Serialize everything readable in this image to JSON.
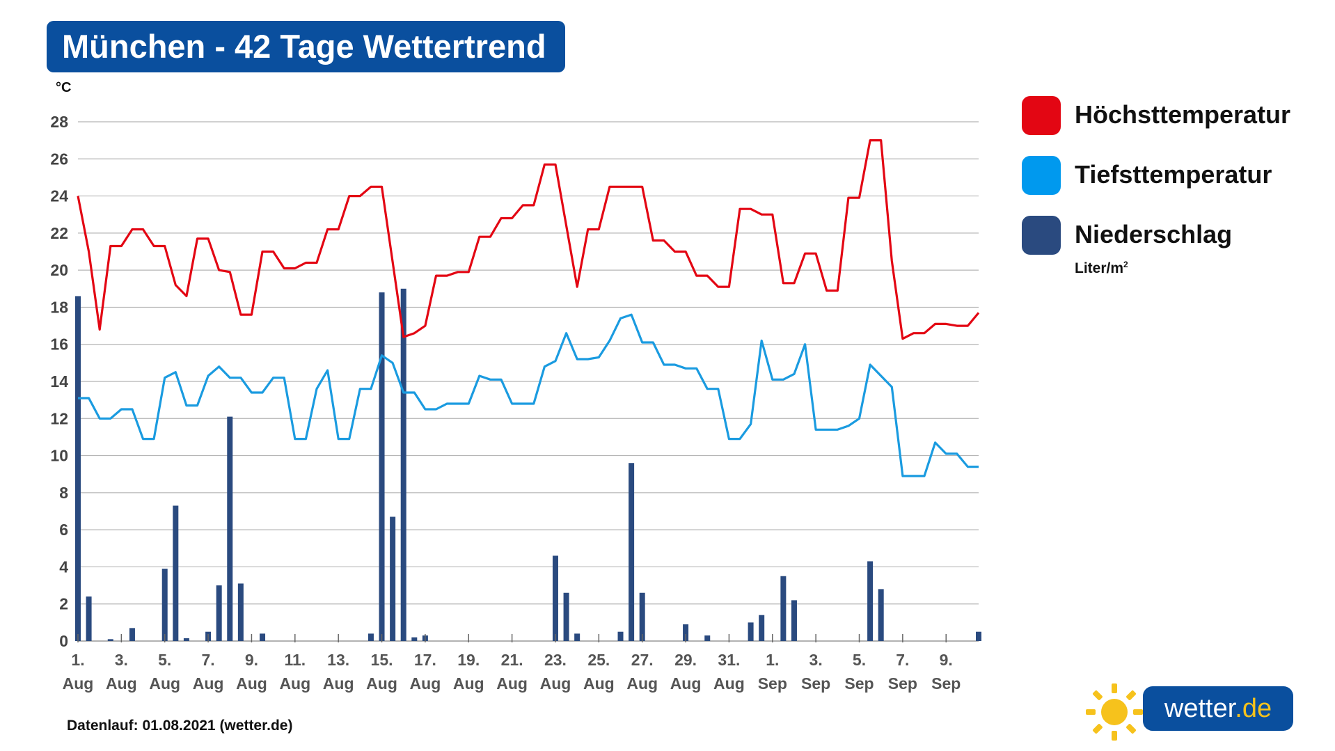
{
  "title": "München - 42 Tage Wettertrend",
  "y_unit": "°C",
  "footer": "Datenlauf: 01.08.2021 (wetter.de)",
  "logo": {
    "name": "wetter",
    "tld": ".de"
  },
  "legend": [
    {
      "label": "Höchsttemperatur",
      "color": "#e30613"
    },
    {
      "label": "Tiefsttemperatur",
      "color": "#0099ee"
    },
    {
      "label": "Niederschlag",
      "color": "#2a4a7f"
    }
  ],
  "legend_unit": {
    "text": "Liter/m",
    "sup": "2"
  },
  "chart_data": {
    "type": "line",
    "title": "München - 42 Tage Wettertrend",
    "ylabel": "°C",
    "ylim": [
      0,
      28
    ],
    "yticks": [
      0,
      2,
      4,
      6,
      8,
      10,
      12,
      14,
      16,
      18,
      20,
      22,
      24,
      26,
      28
    ],
    "grid": true,
    "legend_position": "right",
    "x_ticks": [
      {
        "day": "1.",
        "month": "Aug"
      },
      {
        "day": "3.",
        "month": "Aug"
      },
      {
        "day": "5.",
        "month": "Aug"
      },
      {
        "day": "7.",
        "month": "Aug"
      },
      {
        "day": "9.",
        "month": "Aug"
      },
      {
        "day": "11.",
        "month": "Aug"
      },
      {
        "day": "13.",
        "month": "Aug"
      },
      {
        "day": "15.",
        "month": "Aug"
      },
      {
        "day": "17.",
        "month": "Aug"
      },
      {
        "day": "19.",
        "month": "Aug"
      },
      {
        "day": "21.",
        "month": "Aug"
      },
      {
        "day": "23.",
        "month": "Aug"
      },
      {
        "day": "25.",
        "month": "Aug"
      },
      {
        "day": "27.",
        "month": "Aug"
      },
      {
        "day": "29.",
        "month": "Aug"
      },
      {
        "day": "31.",
        "month": "Aug"
      },
      {
        "day": "1.",
        "month": "Sep"
      },
      {
        "day": "3.",
        "month": "Sep"
      },
      {
        "day": "5.",
        "month": "Sep"
      },
      {
        "day": "7.",
        "month": "Sep"
      },
      {
        "day": "9.",
        "month": "Sep"
      }
    ],
    "series": [
      {
        "name": "Höchsttemperatur",
        "color": "#e30613",
        "kind": "line",
        "points": [
          [
            0,
            24.0
          ],
          [
            0.5,
            21.0
          ],
          [
            1.0,
            16.8
          ],
          [
            1.5,
            21.3
          ],
          [
            2.0,
            21.3
          ],
          [
            2.5,
            22.2
          ],
          [
            3.0,
            22.2
          ],
          [
            3.5,
            21.3
          ],
          [
            4.0,
            21.3
          ],
          [
            4.5,
            19.2
          ],
          [
            5.0,
            18.6
          ],
          [
            5.5,
            21.7
          ],
          [
            6.0,
            21.7
          ],
          [
            6.5,
            20.0
          ],
          [
            7.0,
            19.9
          ],
          [
            7.5,
            17.6
          ],
          [
            8.0,
            17.6
          ],
          [
            8.5,
            21.0
          ],
          [
            9.0,
            21.0
          ],
          [
            9.5,
            20.1
          ],
          [
            10.0,
            20.1
          ],
          [
            10.5,
            20.4
          ],
          [
            11.0,
            20.4
          ],
          [
            11.5,
            22.2
          ],
          [
            12.0,
            22.2
          ],
          [
            12.5,
            24.0
          ],
          [
            13.0,
            24.0
          ],
          [
            13.5,
            24.5
          ],
          [
            14.0,
            24.5
          ],
          [
            15.0,
            16.4
          ],
          [
            15.5,
            16.6
          ],
          [
            16.0,
            17.0
          ],
          [
            16.5,
            19.7
          ],
          [
            17.0,
            19.7
          ],
          [
            17.5,
            19.9
          ],
          [
            18.0,
            19.9
          ],
          [
            18.5,
            21.8
          ],
          [
            19.0,
            21.8
          ],
          [
            19.5,
            22.8
          ],
          [
            20.0,
            22.8
          ],
          [
            20.5,
            23.5
          ],
          [
            21.0,
            23.5
          ],
          [
            21.5,
            25.7
          ],
          [
            22.0,
            25.7
          ],
          [
            23.0,
            19.1
          ],
          [
            23.5,
            22.2
          ],
          [
            24.0,
            22.2
          ],
          [
            24.5,
            24.5
          ],
          [
            25.0,
            24.5
          ],
          [
            25.5,
            24.5
          ],
          [
            26.0,
            24.5
          ],
          [
            26.5,
            21.6
          ],
          [
            27.0,
            21.6
          ],
          [
            27.5,
            21.0
          ],
          [
            28.0,
            21.0
          ],
          [
            28.5,
            19.7
          ],
          [
            29.0,
            19.7
          ],
          [
            29.5,
            19.1
          ],
          [
            30.0,
            19.1
          ],
          [
            30.5,
            23.3
          ],
          [
            31.0,
            23.3
          ],
          [
            31.5,
            23.0
          ],
          [
            32.0,
            23.0
          ],
          [
            32.5,
            19.3
          ],
          [
            33.0,
            19.3
          ],
          [
            33.5,
            20.9
          ],
          [
            34.0,
            20.9
          ],
          [
            34.5,
            18.9
          ],
          [
            35.0,
            18.9
          ],
          [
            35.5,
            23.9
          ],
          [
            36.0,
            23.9
          ],
          [
            36.5,
            27.0
          ],
          [
            37.0,
            27.0
          ],
          [
            37.5,
            20.5
          ],
          [
            38.0,
            16.3
          ],
          [
            38.5,
            16.6
          ],
          [
            39.0,
            16.6
          ],
          [
            39.5,
            17.1
          ],
          [
            40.0,
            17.1
          ],
          [
            40.5,
            17.0
          ],
          [
            41.0,
            17.0
          ],
          [
            41.5,
            17.7
          ]
        ]
      },
      {
        "name": "Tiefsttemperatur",
        "color": "#1a9be0",
        "kind": "line",
        "points": [
          [
            0,
            13.1
          ],
          [
            0.5,
            13.1
          ],
          [
            1.0,
            12.0
          ],
          [
            1.5,
            12.0
          ],
          [
            2.0,
            12.5
          ],
          [
            2.5,
            12.5
          ],
          [
            3.0,
            10.9
          ],
          [
            3.5,
            10.9
          ],
          [
            4.0,
            14.2
          ],
          [
            4.5,
            14.5
          ],
          [
            5.0,
            12.7
          ],
          [
            5.5,
            12.7
          ],
          [
            6.0,
            14.3
          ],
          [
            6.5,
            14.8
          ],
          [
            7.0,
            14.2
          ],
          [
            7.5,
            14.2
          ],
          [
            8.0,
            13.4
          ],
          [
            8.5,
            13.4
          ],
          [
            9.0,
            14.2
          ],
          [
            9.5,
            14.2
          ],
          [
            10.0,
            10.9
          ],
          [
            10.5,
            10.9
          ],
          [
            11.0,
            13.6
          ],
          [
            11.5,
            14.6
          ],
          [
            12.0,
            10.9
          ],
          [
            12.5,
            10.9
          ],
          [
            13.0,
            13.6
          ],
          [
            13.5,
            13.6
          ],
          [
            14.0,
            15.4
          ],
          [
            14.5,
            15.0
          ],
          [
            15.0,
            13.4
          ],
          [
            15.5,
            13.4
          ],
          [
            16.0,
            12.5
          ],
          [
            16.5,
            12.5
          ],
          [
            17.0,
            12.8
          ],
          [
            17.5,
            12.8
          ],
          [
            18.0,
            12.8
          ],
          [
            18.5,
            14.3
          ],
          [
            19.0,
            14.1
          ],
          [
            19.5,
            14.1
          ],
          [
            20.0,
            12.8
          ],
          [
            20.5,
            12.8
          ],
          [
            21.0,
            12.8
          ],
          [
            21.5,
            14.8
          ],
          [
            22.0,
            15.1
          ],
          [
            22.5,
            16.6
          ],
          [
            23.0,
            15.2
          ],
          [
            23.5,
            15.2
          ],
          [
            24.0,
            15.3
          ],
          [
            24.5,
            16.2
          ],
          [
            25.0,
            17.4
          ],
          [
            25.5,
            17.6
          ],
          [
            26.0,
            16.1
          ],
          [
            26.5,
            16.1
          ],
          [
            27.0,
            14.9
          ],
          [
            27.5,
            14.9
          ],
          [
            28.0,
            14.7
          ],
          [
            28.5,
            14.7
          ],
          [
            29.0,
            13.6
          ],
          [
            29.5,
            13.6
          ],
          [
            30.0,
            10.9
          ],
          [
            30.5,
            10.9
          ],
          [
            31.0,
            11.7
          ],
          [
            31.5,
            16.2
          ],
          [
            32.0,
            14.1
          ],
          [
            32.5,
            14.1
          ],
          [
            33.0,
            14.4
          ],
          [
            33.5,
            16.0
          ],
          [
            34.0,
            11.4
          ],
          [
            34.5,
            11.4
          ],
          [
            35.0,
            11.4
          ],
          [
            35.5,
            11.6
          ],
          [
            36.0,
            12.0
          ],
          [
            36.5,
            14.9
          ],
          [
            37.0,
            14.3
          ],
          [
            37.5,
            13.7
          ],
          [
            38.0,
            8.9
          ],
          [
            38.5,
            8.9
          ],
          [
            39.0,
            8.9
          ],
          [
            39.5,
            10.7
          ],
          [
            40.0,
            10.1
          ],
          [
            40.5,
            10.1
          ],
          [
            41.0,
            9.4
          ],
          [
            41.5,
            9.4
          ]
        ]
      },
      {
        "name": "Niederschlag",
        "color": "#2a4a7f",
        "kind": "bar",
        "unit": "Liter/m2",
        "points": [
          [
            0,
            18.6
          ],
          [
            0.5,
            2.4
          ],
          [
            1.5,
            0.1
          ],
          [
            2.5,
            0.7
          ],
          [
            4.0,
            3.9
          ],
          [
            4.5,
            7.3
          ],
          [
            5.0,
            0.15
          ],
          [
            6.0,
            0.5
          ],
          [
            6.5,
            3.0
          ],
          [
            7.0,
            12.1
          ],
          [
            7.5,
            3.1
          ],
          [
            8.5,
            0.4
          ],
          [
            13.5,
            0.4
          ],
          [
            14.0,
            18.8
          ],
          [
            14.5,
            6.7
          ],
          [
            15.0,
            19.0
          ],
          [
            15.5,
            0.2
          ],
          [
            16.0,
            0.3
          ],
          [
            22.0,
            4.6
          ],
          [
            22.5,
            2.6
          ],
          [
            23.0,
            0.4
          ],
          [
            25.0,
            0.5
          ],
          [
            25.5,
            9.6
          ],
          [
            26.0,
            2.6
          ],
          [
            28.0,
            0.9
          ],
          [
            29.0,
            0.3
          ],
          [
            31.0,
            1.0
          ],
          [
            31.5,
            1.4
          ],
          [
            32.5,
            3.5
          ],
          [
            33.0,
            2.2
          ],
          [
            36.5,
            4.3
          ],
          [
            37.0,
            2.8
          ],
          [
            41.5,
            0.5
          ]
        ]
      }
    ]
  }
}
